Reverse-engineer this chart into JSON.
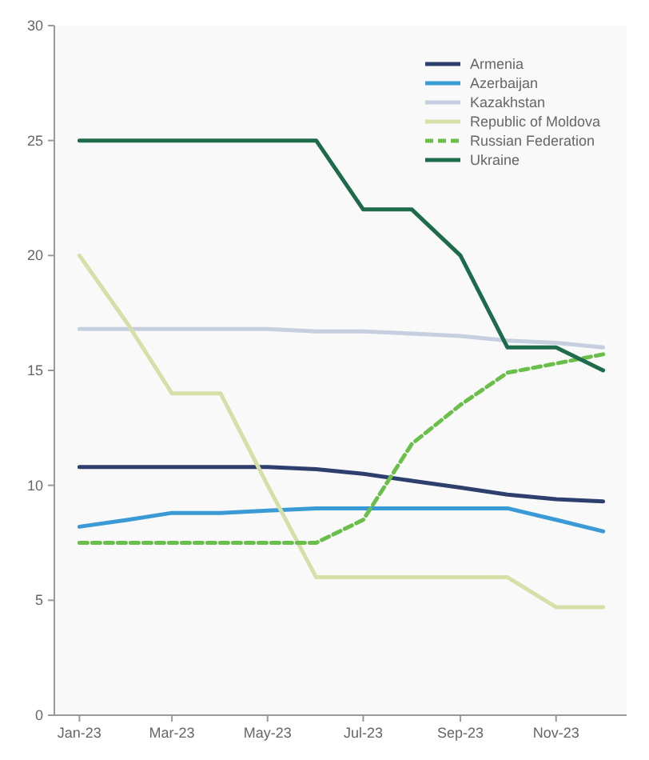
{
  "chart_data": {
    "type": "line",
    "x": [
      "2023-01",
      "2023-02",
      "2023-03",
      "2023-04",
      "2023-05",
      "2023-06",
      "2023-07",
      "2023-08",
      "2023-09",
      "2023-10",
      "2023-11",
      "2023-12"
    ],
    "series": [
      {
        "name": "Armenia",
        "color": "#2e3f6e",
        "values": [
          10.8,
          10.8,
          10.8,
          10.8,
          10.8,
          10.7,
          10.5,
          10.2,
          9.9,
          9.6,
          9.4,
          9.3
        ]
      },
      {
        "name": "Azerbaijan",
        "color": "#3a9ad6",
        "values": [
          8.2,
          8.5,
          8.8,
          8.8,
          8.9,
          9.0,
          9.0,
          9.0,
          9.0,
          9.0,
          8.5,
          8.0
        ]
      },
      {
        "name": "Kazakhstan",
        "color": "#c5cfe0",
        "values": [
          16.8,
          16.8,
          16.8,
          16.8,
          16.8,
          16.7,
          16.7,
          16.6,
          16.5,
          16.3,
          16.2,
          16.0
        ]
      },
      {
        "name": "Republic of Moldova",
        "color": "#d4e0a8",
        "values": [
          20,
          17,
          14,
          14,
          10,
          6,
          6,
          6,
          6,
          6,
          4.7,
          4.7
        ]
      },
      {
        "name": "Russian Federation",
        "color": "#6abf4b",
        "line_style": "dashed",
        "values": [
          7.5,
          7.5,
          7.5,
          7.5,
          7.5,
          7.5,
          8.5,
          11.8,
          13.5,
          14.9,
          15.3,
          15.7
        ]
      },
      {
        "name": "Ukraine",
        "color": "#1e6b4c",
        "values": [
          25,
          25,
          25,
          25,
          25,
          25,
          22,
          22,
          20,
          16,
          16,
          15
        ]
      }
    ],
    "xlim": [
      "2022-12-16",
      "2023-12-16"
    ],
    "xticks": [
      {
        "value": "2023-01",
        "label": "Jan-23"
      },
      {
        "value": "2023-03",
        "label": "Mar-23"
      },
      {
        "value": "2023-05",
        "label": "May-23"
      },
      {
        "value": "2023-07",
        "label": "Jul-23"
      },
      {
        "value": "2023-09",
        "label": "Sep-23"
      },
      {
        "value": "2023-11",
        "label": "Nov-23"
      }
    ],
    "ylim": [
      0,
      30
    ],
    "yticks": [
      0,
      5,
      10,
      15,
      20,
      25,
      30
    ],
    "legend": "top right"
  }
}
